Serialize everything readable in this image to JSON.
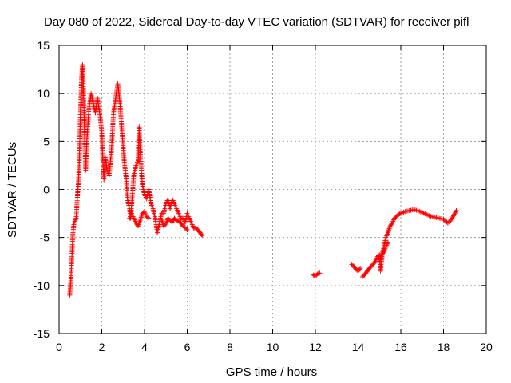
{
  "chart_data": {
    "type": "scatter",
    "title": "Day 080 of 2022, Sidereal Day-to-day VTEC variation (SDTVAR) for receiver pifl",
    "xlabel": "GPS time / hours",
    "ylabel": "SDTVAR / TECUs",
    "xlim": [
      0,
      20
    ],
    "ylim": [
      -15,
      15
    ],
    "xticks": [
      0,
      2,
      4,
      6,
      8,
      10,
      12,
      14,
      16,
      18,
      20
    ],
    "yticks": [
      -15,
      -10,
      -5,
      0,
      5,
      10,
      15
    ],
    "grid": true,
    "marker": "plus",
    "color": "#ff0000",
    "series": [
      {
        "name": "SDTVAR",
        "segments": [
          [
            [
              0.5,
              -11
            ],
            [
              0.55,
              -9.5
            ],
            [
              0.6,
              -7
            ],
            [
              0.65,
              -4.5
            ],
            [
              0.7,
              -3.5
            ],
            [
              0.8,
              -3
            ],
            [
              0.85,
              -1
            ],
            [
              0.9,
              0.5
            ],
            [
              0.95,
              3
            ],
            [
              1.0,
              8
            ],
            [
              1.05,
              11.5
            ],
            [
              1.1,
              13
            ],
            [
              1.15,
              10
            ],
            [
              1.2,
              5
            ],
            [
              1.25,
              2
            ],
            [
              1.3,
              5
            ],
            [
              1.4,
              8.5
            ],
            [
              1.5,
              10
            ],
            [
              1.6,
              9
            ],
            [
              1.7,
              8
            ],
            [
              1.8,
              9.5
            ],
            [
              1.9,
              8
            ],
            [
              2.0,
              6
            ],
            [
              2.05,
              3
            ],
            [
              2.1,
              1
            ],
            [
              2.15,
              3.5
            ],
            [
              2.25,
              2
            ],
            [
              2.35,
              1.5
            ],
            [
              2.45,
              4
            ],
            [
              2.55,
              8
            ],
            [
              2.65,
              9.5
            ],
            [
              2.75,
              11
            ],
            [
              2.85,
              9
            ],
            [
              2.95,
              6
            ],
            [
              3.05,
              3
            ],
            [
              3.15,
              1
            ],
            [
              3.2,
              -1
            ],
            [
              3.3,
              -2
            ],
            [
              3.35,
              -3
            ],
            [
              3.4,
              -1.5
            ],
            [
              3.5,
              1.5
            ],
            [
              3.6,
              2.5
            ],
            [
              3.7,
              3
            ],
            [
              3.75,
              6.5
            ],
            [
              3.8,
              4
            ],
            [
              3.85,
              2
            ],
            [
              3.9,
              0.5
            ],
            [
              4.0,
              -0.5
            ],
            [
              4.1,
              -1
            ],
            [
              4.2,
              0
            ],
            [
              4.3,
              -1.5
            ],
            [
              4.4,
              -2
            ],
            [
              4.5,
              -3
            ],
            [
              4.6,
              -4.5
            ],
            [
              4.7,
              -3.5
            ],
            [
              4.8,
              -2.5
            ],
            [
              4.9,
              -2.5
            ],
            [
              5.0,
              -1.5
            ],
            [
              5.1,
              -1
            ],
            [
              5.2,
              -2
            ],
            [
              5.3,
              -1
            ],
            [
              5.4,
              -1.5
            ],
            [
              5.5,
              -2
            ],
            [
              5.6,
              -2.5
            ],
            [
              5.7,
              -3
            ],
            [
              5.8,
              -3
            ],
            [
              5.9,
              -3.5
            ],
            [
              6.0,
              -2.5
            ],
            [
              6.1,
              -3
            ],
            [
              6.2,
              -3.5
            ],
            [
              6.3,
              -4
            ],
            [
              6.4,
              -4
            ],
            [
              6.5,
              -4.2
            ],
            [
              6.6,
              -4.5
            ],
            [
              6.7,
              -4.8
            ]
          ],
          [
            [
              3.3,
              -3
            ],
            [
              3.4,
              -2.5
            ],
            [
              3.5,
              -3
            ],
            [
              3.6,
              -3.5
            ],
            [
              3.7,
              -3.8
            ],
            [
              3.8,
              -3.2
            ],
            [
              3.9,
              -2.5
            ],
            [
              4.0,
              -2.3
            ],
            [
              4.1,
              -2.8
            ],
            [
              4.2,
              -3
            ]
          ],
          [
            [
              4.8,
              -3.2
            ],
            [
              4.9,
              -3.8
            ],
            [
              5.0,
              -3.6
            ],
            [
              5.1,
              -3
            ],
            [
              5.2,
              -3.2
            ],
            [
              5.3,
              -3.4
            ],
            [
              5.4,
              -3
            ],
            [
              5.5,
              -3.2
            ],
            [
              5.6,
              -3.3
            ],
            [
              5.7,
              -3.5
            ],
            [
              5.8,
              -3.8
            ],
            [
              5.9,
              -4
            ],
            [
              6.0,
              -4.2
            ]
          ],
          [
            [
              11.9,
              -8.9
            ],
            [
              12.0,
              -9
            ],
            [
              12.1,
              -8.8
            ],
            [
              12.2,
              -8.7
            ]
          ],
          [
            [
              13.7,
              -7.8
            ],
            [
              13.8,
              -8
            ],
            [
              13.9,
              -8.3
            ],
            [
              14.0,
              -8.5
            ],
            [
              14.1,
              -8.2
            ]
          ],
          [
            [
              14.2,
              -9.1
            ],
            [
              14.3,
              -8.9
            ],
            [
              14.4,
              -8.6
            ],
            [
              14.5,
              -8.3
            ],
            [
              14.6,
              -8
            ],
            [
              14.7,
              -7.8
            ],
            [
              14.8,
              -7.5
            ],
            [
              14.9,
              -7
            ],
            [
              15.0,
              -6.8
            ],
            [
              15.05,
              -8.5
            ],
            [
              15.1,
              -7.5
            ],
            [
              15.15,
              -6.5
            ],
            [
              15.2,
              -6
            ],
            [
              15.3,
              -5
            ],
            [
              15.4,
              -4.5
            ],
            [
              15.5,
              -3.8
            ],
            [
              15.6,
              -3.5
            ],
            [
              15.7,
              -3
            ],
            [
              15.8,
              -2.8
            ],
            [
              15.9,
              -2.6
            ],
            [
              16.0,
              -2.5
            ],
            [
              16.2,
              -2.3
            ],
            [
              16.4,
              -2.2
            ],
            [
              16.6,
              -2.1
            ],
            [
              16.8,
              -2.2
            ],
            [
              17.0,
              -2.4
            ],
            [
              17.2,
              -2.6
            ],
            [
              17.4,
              -2.8
            ],
            [
              17.6,
              -2.9
            ],
            [
              17.8,
              -3.0
            ],
            [
              18.0,
              -3.1
            ],
            [
              18.1,
              -3.3
            ],
            [
              18.2,
              -3.5
            ],
            [
              18.3,
              -3.3
            ],
            [
              18.4,
              -3.0
            ],
            [
              18.5,
              -2.6
            ],
            [
              18.6,
              -2.2
            ]
          ],
          [
            [
              15.0,
              -7.5
            ],
            [
              15.1,
              -6.8
            ],
            [
              15.2,
              -6.5
            ],
            [
              15.3,
              -6
            ],
            [
              15.4,
              -5.5
            ]
          ]
        ]
      }
    ]
  }
}
